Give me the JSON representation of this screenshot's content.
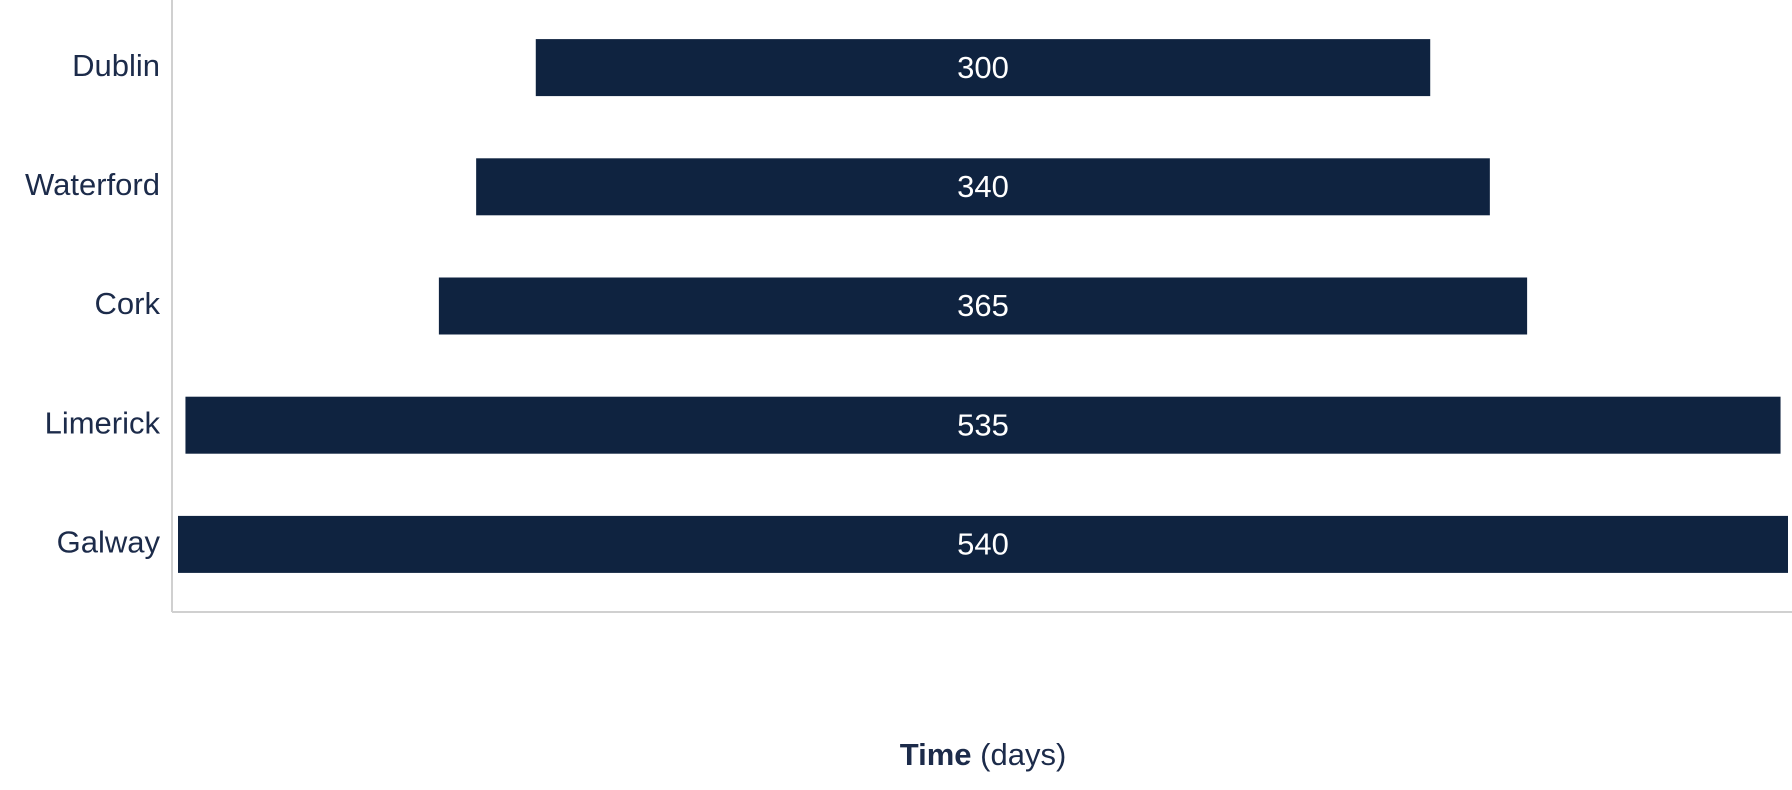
{
  "chart_data": {
    "type": "bar",
    "orientation": "horizontal",
    "centered": true,
    "categories": [
      "Dublin",
      "Waterford",
      "Cork",
      "Limerick",
      "Galway"
    ],
    "values": [
      300,
      340,
      365,
      535,
      540
    ],
    "color": "#0f2340",
    "x_label": [
      "Time",
      "(days)"
    ]
  }
}
